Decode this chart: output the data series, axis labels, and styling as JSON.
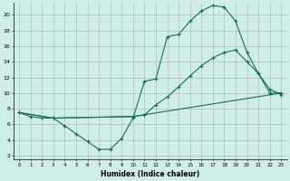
{
  "xlabel": "Humidex (Indice chaleur)",
  "bg_color": "#d0eee8",
  "grid_color": "#b0b0b0",
  "line_color": "#1a6b5a",
  "xlim": [
    -0.5,
    23.5
  ],
  "ylim": [
    1.5,
    21.5
  ],
  "xticks": [
    0,
    1,
    2,
    3,
    4,
    5,
    6,
    7,
    8,
    9,
    10,
    11,
    12,
    13,
    14,
    15,
    16,
    17,
    18,
    19,
    20,
    21,
    22,
    23
  ],
  "yticks": [
    2,
    4,
    6,
    8,
    10,
    12,
    14,
    16,
    18,
    20
  ],
  "line1_x": [
    0,
    1,
    2,
    3,
    4,
    5,
    6,
    7,
    8,
    9,
    10,
    11,
    12,
    13,
    14,
    15,
    16,
    17,
    18,
    19,
    20,
    21,
    22,
    23
  ],
  "line1_y": [
    7.5,
    7.0,
    6.8,
    6.8,
    5.8,
    4.8,
    3.8,
    2.8,
    2.8,
    4.2,
    6.8,
    11.5,
    11.8,
    17.2,
    17.5,
    19.2,
    20.5,
    21.2,
    21.0,
    19.2,
    15.2,
    12.5,
    10.5,
    9.8
  ],
  "line2_x": [
    0,
    3,
    10,
    11,
    12,
    13,
    14,
    15,
    16,
    17,
    18,
    19,
    20,
    21,
    22,
    23
  ],
  "line2_y": [
    7.5,
    6.8,
    7.0,
    7.2,
    8.5,
    9.5,
    10.8,
    12.2,
    13.5,
    14.5,
    15.2,
    15.5,
    14.0,
    12.5,
    10.0,
    10.0
  ],
  "line3_x": [
    0,
    3,
    10,
    23
  ],
  "line3_y": [
    7.5,
    6.8,
    7.0,
    10.0
  ]
}
